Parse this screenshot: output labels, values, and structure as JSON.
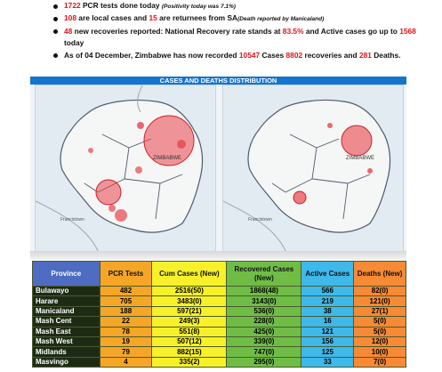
{
  "bullets": [
    {
      "parts": [
        {
          "t": "1722",
          "c": "red"
        },
        {
          "t": " PCR tests done today ",
          "c": ""
        },
        {
          "t": "(Positivity today was 7.1%)",
          "c": "note"
        }
      ]
    },
    {
      "parts": [
        {
          "t": "108",
          "c": "red"
        },
        {
          "t": " are local cases and ",
          "c": ""
        },
        {
          "t": "15",
          "c": "red"
        },
        {
          "t": " are returnees from SA",
          "c": ""
        },
        {
          "t": "(Death reported by Manicaland)",
          "c": "note"
        }
      ]
    },
    {
      "parts": [
        {
          "t": "48",
          "c": "red"
        },
        {
          "t": " new recoveries reported: National Recovery rate stands at ",
          "c": ""
        },
        {
          "t": "83.5%",
          "c": "red"
        },
        {
          "t": " and Active cases go up to ",
          "c": ""
        },
        {
          "t": "1568",
          "c": "red"
        },
        {
          "t": " today",
          "c": ""
        }
      ]
    },
    {
      "parts": [
        {
          "t": "As of 04 December, Zimbabwe has now recorded ",
          "c": ""
        },
        {
          "t": "10547",
          "c": "red"
        },
        {
          "t": " Cases ",
          "c": ""
        },
        {
          "t": "8802",
          "c": "red"
        },
        {
          "t": " recoveries and ",
          "c": ""
        },
        {
          "t": "281",
          "c": "red"
        },
        {
          "t": " Deaths.",
          "c": ""
        }
      ]
    }
  ],
  "map_section": {
    "title": "CASES AND DEATHS DISTRIBUTION",
    "map_label_left": "ZIMBABWE",
    "map_label_right": "ZIMBABWE",
    "place_left": "Francistown",
    "place_right": "Francistown"
  },
  "colors": {
    "red": "#e0121a",
    "band": "#1474cf",
    "province": "#1e2b14",
    "pcr": "#f6a626",
    "cum": "#f7f129",
    "recovered": "#70bd46",
    "active": "#3fb8ea",
    "deaths": "#f78a34"
  },
  "table": {
    "headers": [
      "Province",
      "PCR Tests",
      "Cum Cases (New)",
      "Recovered Cases (New)",
      "Active Cases",
      "Deaths (New)"
    ],
    "rows": [
      [
        "Bulawayo",
        "482",
        "2516(50)",
        "1868(48)",
        "566",
        "82(0)"
      ],
      [
        "Harare",
        "705",
        "3483(0)",
        "3143(0)",
        "219",
        "121(0)"
      ],
      [
        "Manicaland",
        "188",
        "597(21)",
        "536(0)",
        "38",
        "27(1)"
      ],
      [
        "Mash Cent",
        "22",
        "249(3)",
        "228(0)",
        "16",
        "5(0)"
      ],
      [
        "Mash East",
        "78",
        "551(8)",
        "425(0)",
        "121",
        "5(0)"
      ],
      [
        "Mash West",
        "19",
        "507(12)",
        "339(0)",
        "156",
        "12(0)"
      ],
      [
        "Midlands",
        "79",
        "882(15)",
        "747(0)",
        "125",
        "10(0)"
      ],
      [
        "Masvingo",
        "4",
        "335(2)",
        "295(0)",
        "33",
        "7(0)"
      ]
    ]
  }
}
